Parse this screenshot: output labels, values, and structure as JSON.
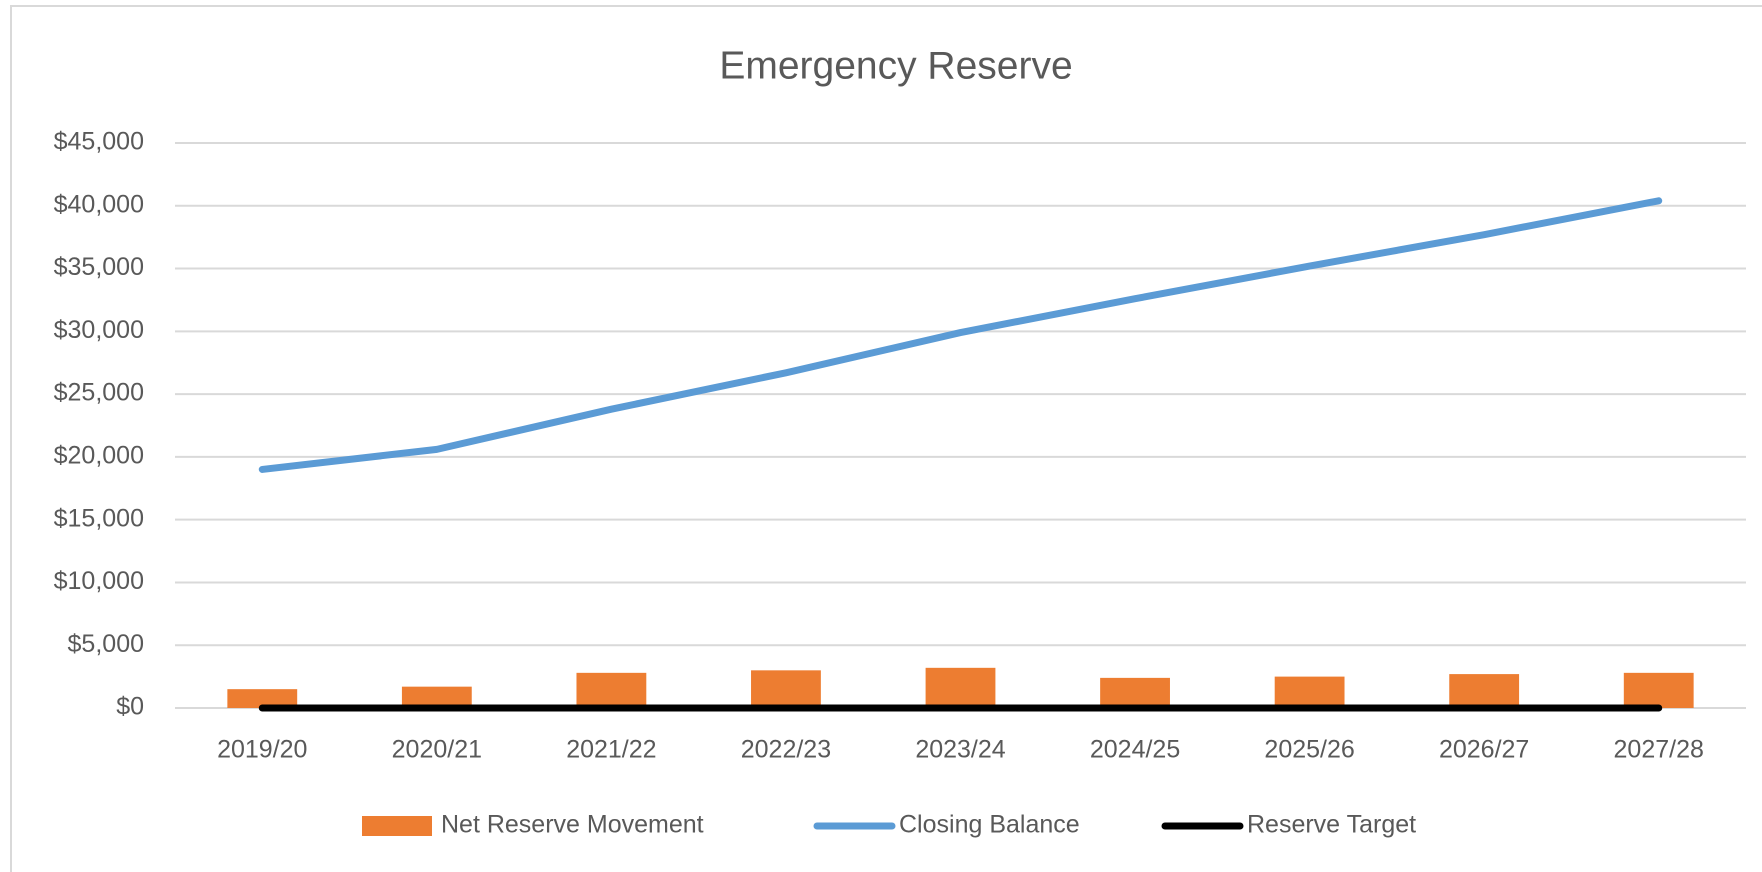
{
  "chart_data": {
    "type": "combo",
    "title": "Emergency Reserve",
    "categories": [
      "2019/20",
      "2020/21",
      "2021/22",
      "2022/23",
      "2023/24",
      "2024/25",
      "2025/26",
      "2026/27",
      "2027/28"
    ],
    "series": [
      {
        "name": "Net Reserve Movement",
        "type": "bar",
        "color": "#ed7d31",
        "values": [
          1500,
          1700,
          2800,
          3000,
          3200,
          2400,
          2500,
          2700,
          2800
        ]
      },
      {
        "name": "Closing Balance",
        "type": "line",
        "color": "#5b9bd5",
        "values": [
          19000,
          20600,
          23800,
          26700,
          29900,
          32600,
          35200,
          37700,
          40400
        ]
      },
      {
        "name": "Reserve Target",
        "type": "line",
        "color": "#000000",
        "values": [
          0,
          0,
          0,
          0,
          0,
          0,
          0,
          0,
          0
        ]
      }
    ],
    "ylim": [
      0,
      45000
    ],
    "yticks": [
      {
        "value": 0,
        "label": "$0"
      },
      {
        "value": 5000,
        "label": "$5,000"
      },
      {
        "value": 10000,
        "label": "$10,000"
      },
      {
        "value": 15000,
        "label": "$15,000"
      },
      {
        "value": 20000,
        "label": "$20,000"
      },
      {
        "value": 25000,
        "label": "$25,000"
      },
      {
        "value": 30000,
        "label": "$30,000"
      },
      {
        "value": 35000,
        "label": "$35,000"
      },
      {
        "value": 40000,
        "label": "$40,000"
      },
      {
        "value": 45000,
        "label": "$45,000"
      }
    ],
    "grid": true,
    "legend": "bottom"
  }
}
